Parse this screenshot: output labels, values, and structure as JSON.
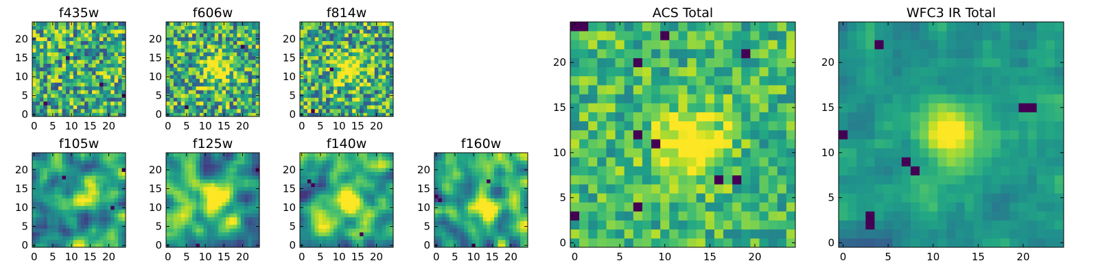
{
  "figure": {
    "colormap": "viridis",
    "panel_frame_color": "#000000",
    "background": "#ffffff"
  },
  "chart_data": [
    {
      "type": "heatmap",
      "title": "f435w",
      "grid_size": 25,
      "xlim": [
        -0.5,
        24.5
      ],
      "ylim": [
        -0.5,
        24.5
      ],
      "xticks": [
        0,
        5,
        10,
        15,
        20
      ],
      "yticks": [
        0,
        5,
        10,
        15,
        20
      ],
      "xlabel": "",
      "ylabel": "",
      "texture": "noisy",
      "peak": null,
      "seed": 11,
      "dark_pixels": [
        [
          3,
          3
        ],
        [
          18,
          8
        ],
        [
          24,
          5
        ],
        [
          9,
          15
        ]
      ]
    },
    {
      "type": "heatmap",
      "title": "f606w",
      "grid_size": 25,
      "xlim": [
        -0.5,
        24.5
      ],
      "ylim": [
        -0.5,
        24.5
      ],
      "xticks": [
        0,
        5,
        10,
        15,
        20
      ],
      "yticks": [
        0,
        5,
        10,
        15,
        20
      ],
      "xlabel": "",
      "ylabel": "",
      "texture": "noisy",
      "peak": [
        13,
        12
      ],
      "seed": 23,
      "dark_pixels": [
        [
          5,
          2
        ],
        [
          20,
          18
        ]
      ]
    },
    {
      "type": "heatmap",
      "title": "f814w",
      "grid_size": 25,
      "xlim": [
        -0.5,
        24.5
      ],
      "ylim": [
        -0.5,
        24.5
      ],
      "xticks": [
        0,
        5,
        10,
        15,
        20
      ],
      "yticks": [
        0,
        5,
        10,
        15,
        20
      ],
      "xlabel": "",
      "ylabel": "",
      "texture": "noisy",
      "peak": [
        13,
        12
      ],
      "seed": 37,
      "dark_pixels": [
        [
          8,
          12
        ],
        [
          3,
          1
        ]
      ]
    },
    {
      "type": "heatmap",
      "title": "f105w",
      "grid_size": 25,
      "xlim": [
        -0.5,
        24.5
      ],
      "ylim": [
        -0.5,
        24.5
      ],
      "xticks": [
        0,
        5,
        10,
        15,
        20
      ],
      "yticks": [
        0,
        5,
        10,
        15,
        20
      ],
      "xlabel": "",
      "ylabel": "",
      "texture": "smooth",
      "peak": [
        14,
        13
      ],
      "seed": 41,
      "dark_pixels": [
        [
          8,
          18
        ],
        [
          21,
          10
        ],
        [
          24,
          20
        ]
      ]
    },
    {
      "type": "heatmap",
      "title": "f125w",
      "grid_size": 25,
      "xlim": [
        -0.5,
        24.5
      ],
      "ylim": [
        -0.5,
        24.5
      ],
      "xticks": [
        0,
        5,
        10,
        15,
        20
      ],
      "yticks": [
        0,
        5,
        10,
        15,
        20
      ],
      "xlabel": "",
      "ylabel": "",
      "texture": "smooth",
      "peak": [
        13,
        12
      ],
      "seed": 53,
      "dark_pixels": [
        [
          24,
          20
        ],
        [
          8,
          0
        ]
      ]
    },
    {
      "type": "heatmap",
      "title": "f140w",
      "grid_size": 25,
      "xlim": [
        -0.5,
        24.5
      ],
      "ylim": [
        -0.5,
        24.5
      ],
      "xticks": [
        0,
        5,
        10,
        15,
        20
      ],
      "yticks": [
        0,
        5,
        10,
        15,
        20
      ],
      "xlabel": "",
      "ylabel": "",
      "texture": "smooth",
      "peak": [
        12,
        12
      ],
      "seed": 67,
      "dark_pixels": [
        [
          2,
          17
        ],
        [
          3,
          16
        ],
        [
          16,
          3
        ]
      ]
    },
    {
      "type": "heatmap",
      "title": "f160w",
      "grid_size": 25,
      "xlim": [
        -0.5,
        24.5
      ],
      "ylim": [
        -0.5,
        24.5
      ],
      "xticks": [
        0,
        5,
        10,
        15,
        20
      ],
      "yticks": [
        0,
        5,
        10,
        15,
        20
      ],
      "xlabel": "",
      "ylabel": "",
      "texture": "smooth",
      "peak": [
        13,
        10
      ],
      "seed": 79,
      "dark_pixels": [
        [
          0,
          13
        ],
        [
          1,
          12
        ],
        [
          10,
          0
        ],
        [
          14,
          17
        ]
      ]
    },
    {
      "type": "heatmap",
      "title": "ACS Total",
      "grid_size": 25,
      "xlim": [
        -0.5,
        24.5
      ],
      "ylim": [
        -0.5,
        24.5
      ],
      "xticks": [
        0,
        5,
        10,
        15,
        20
      ],
      "yticks": [
        0,
        5,
        10,
        15,
        20
      ],
      "xlabel": "",
      "ylabel": "",
      "texture": "blocky",
      "peak": [
        13,
        11
      ],
      "seed": 83,
      "dark_pixels": [
        [
          0,
          24
        ],
        [
          1,
          24
        ],
        [
          10,
          23
        ],
        [
          7,
          20
        ],
        [
          19,
          21
        ],
        [
          7,
          12
        ],
        [
          9,
          11
        ],
        [
          16,
          7
        ],
        [
          18,
          7
        ],
        [
          7,
          4
        ],
        [
          0,
          3
        ]
      ]
    },
    {
      "type": "heatmap",
      "title": "WFC3 IR Total",
      "grid_size": 25,
      "xlim": [
        -0.5,
        24.5
      ],
      "ylim": [
        -0.5,
        24.5
      ],
      "xticks": [
        0,
        5,
        10,
        15,
        20
      ],
      "yticks": [
        0,
        5,
        10,
        15,
        20
      ],
      "xlabel": "",
      "ylabel": "",
      "texture": "soft",
      "peak": [
        12,
        12
      ],
      "seed": 97,
      "dark_pixels": [
        [
          0,
          12
        ],
        [
          7,
          9
        ],
        [
          8,
          8
        ],
        [
          20,
          15
        ],
        [
          21,
          15
        ],
        [
          3,
          2
        ],
        [
          3,
          3
        ],
        [
          4,
          22
        ]
      ]
    }
  ]
}
